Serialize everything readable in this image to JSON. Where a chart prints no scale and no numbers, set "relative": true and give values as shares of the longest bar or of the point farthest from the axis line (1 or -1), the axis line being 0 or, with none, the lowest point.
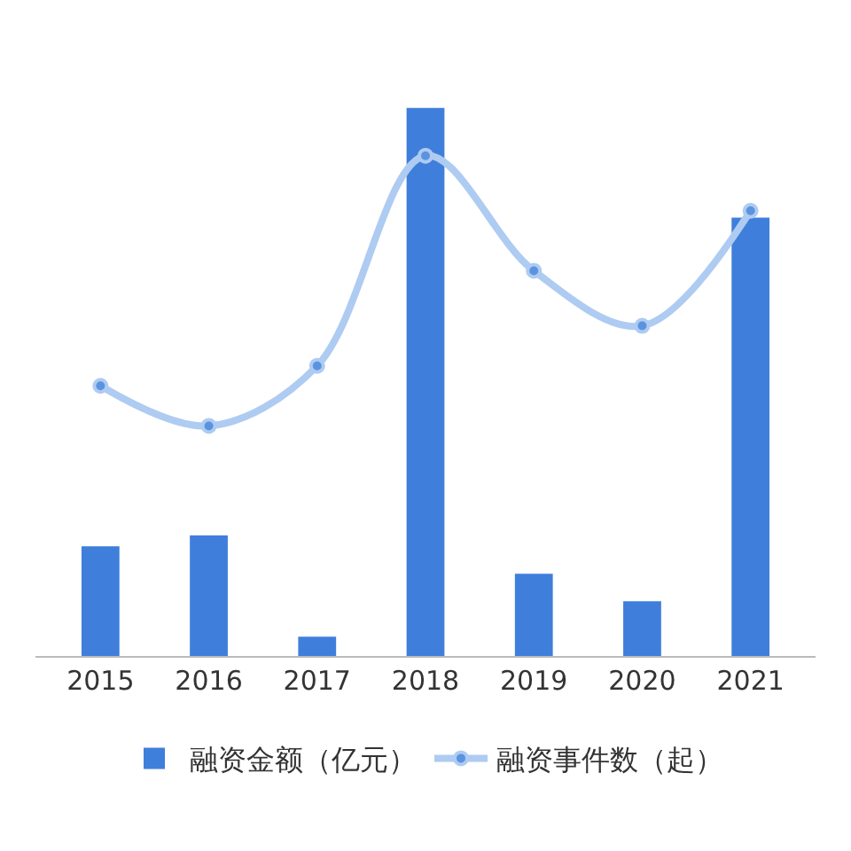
{
  "chart_data": {
    "type": "bar",
    "relative": true,
    "categories": [
      "2015",
      "2016",
      "2017",
      "2018",
      "2019",
      "2020",
      "2021"
    ],
    "series": [
      {
        "name": "融资金额（亿元）",
        "color": "#3f7fdb",
        "values": [
          0.2,
          0.22,
          0.035,
          1,
          0.15,
          0.1,
          0.8
        ]
      },
      {
        "name": "融资事件数（起）",
        "type": "line",
        "axis": "y2",
        "color": "#aecbf2",
        "marker": "circle",
        "values": [
          0.54,
          0.46,
          0.58,
          1,
          0.77,
          0.66,
          0.89
        ]
      }
    ],
    "grid": false,
    "legend": "bottom"
  }
}
